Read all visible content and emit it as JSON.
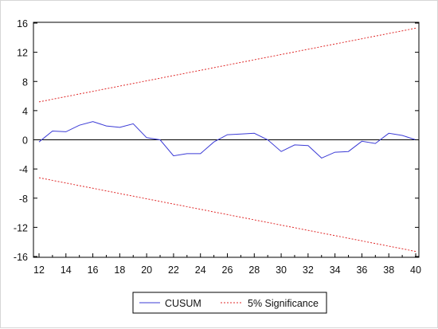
{
  "chart_data": {
    "type": "line",
    "title": "",
    "xlabel": "",
    "ylabel": "",
    "xlim": [
      12,
      40
    ],
    "ylim": [
      -16,
      16
    ],
    "x_ticks": [
      "12",
      "14",
      "16",
      "18",
      "20",
      "22",
      "24",
      "26",
      "28",
      "30",
      "32",
      "34",
      "36",
      "38",
      "40"
    ],
    "y_ticks": [
      "16",
      "12",
      "8",
      "4",
      "0",
      "-4",
      "-8",
      "-12",
      "-16"
    ],
    "grid": false,
    "zero_line": true,
    "legend": "bottom-center",
    "x": [
      12,
      13,
      14,
      15,
      16,
      17,
      18,
      19,
      20,
      21,
      22,
      23,
      24,
      25,
      26,
      27,
      28,
      29,
      30,
      31,
      32,
      33,
      34,
      35,
      36,
      37,
      38,
      39,
      40
    ],
    "series": [
      {
        "name": "CUSUM",
        "color": "#3b3bd6",
        "style": "solid",
        "values": [
          -0.3,
          1.2,
          1.1,
          2.0,
          2.5,
          1.9,
          1.7,
          2.2,
          0.3,
          0.0,
          -2.2,
          -1.9,
          -1.9,
          -0.3,
          0.7,
          0.8,
          0.9,
          0.0,
          -1.6,
          -0.7,
          -0.8,
          -2.5,
          -1.7,
          -1.6,
          -0.2,
          -0.5,
          0.9,
          0.6,
          0.0
        ]
      },
      {
        "name": "5% Significance",
        "color": "#e02a2a",
        "style": "dashed",
        "band": true,
        "upper": [
          5.2,
          15.3
        ],
        "lower": [
          -5.2,
          -15.3
        ]
      }
    ]
  }
}
